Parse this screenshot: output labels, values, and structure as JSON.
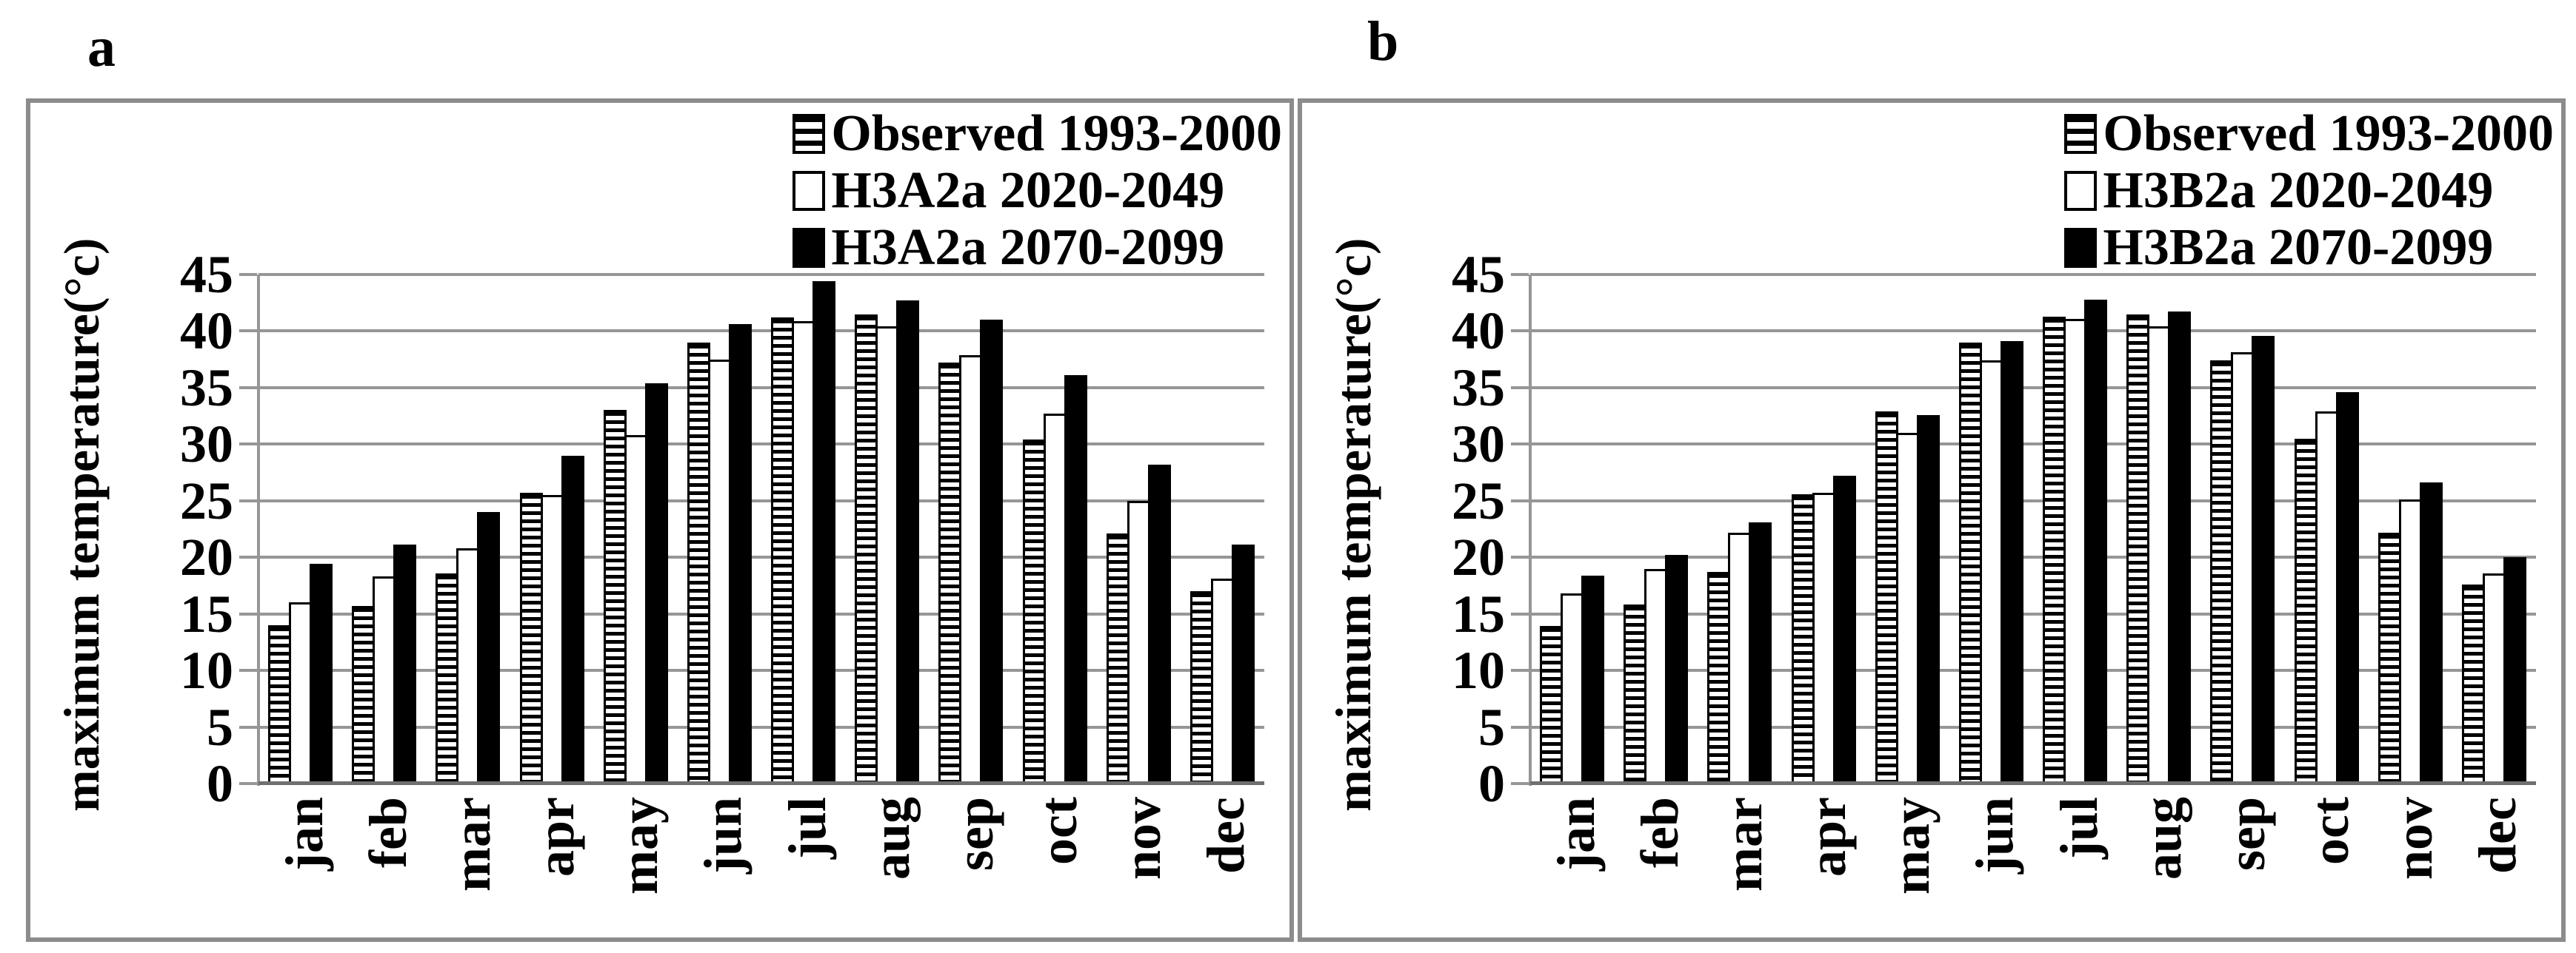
{
  "figure_labels": {
    "a": "a",
    "b": "b"
  },
  "colors": {
    "gridline": "#969696",
    "baseline": "#6f6f6f",
    "panel_border": "#8c8c8c",
    "text": "#000000",
    "bar_black": "#000000",
    "bar_white": "#ffffff"
  },
  "chart_data": [
    {
      "panel": "a",
      "type": "bar",
      "title": "",
      "ylabel": "maximum temperature(°c)",
      "xlabel": "",
      "ylim": [
        0,
        45
      ],
      "yticks": [
        45,
        40,
        35,
        30,
        25,
        20,
        15,
        10,
        5,
        0
      ],
      "grid": true,
      "legend_position": "top-right-inside",
      "categories": [
        "jan",
        "feb",
        "mar",
        "apr",
        "may",
        "jun",
        "jul",
        "aug",
        "sep",
        "oct",
        "nov",
        "dec"
      ],
      "series": [
        {
          "name": "Observed 1993-2000",
          "style": "hatched",
          "values": [
            14.0,
            15.7,
            18.6,
            25.7,
            33.0,
            39.0,
            41.2,
            41.5,
            37.2,
            30.4,
            22.1,
            17.0
          ]
        },
        {
          "name": "H3A2a 2020-2049",
          "style": "white",
          "values": [
            16.0,
            18.3,
            20.8,
            25.5,
            30.8,
            37.5,
            40.9,
            40.4,
            37.9,
            32.7,
            25.0,
            18.1
          ]
        },
        {
          "name": "H3A2a 2070-2099",
          "style": "black",
          "values": [
            19.4,
            21.1,
            24.0,
            29.0,
            35.4,
            40.6,
            44.4,
            42.7,
            41.0,
            36.1,
            28.2,
            21.1
          ]
        }
      ]
    },
    {
      "panel": "b",
      "type": "bar",
      "title": "",
      "ylabel": "maximum temperature(°c)",
      "xlabel": "",
      "ylim": [
        0,
        45
      ],
      "yticks": [
        45,
        40,
        35,
        30,
        25,
        20,
        15,
        10,
        5,
        0
      ],
      "grid": true,
      "legend_position": "top-right-inside",
      "categories": [
        "jan",
        "feb",
        "mar",
        "apr",
        "may",
        "jun",
        "jul",
        "aug",
        "sep",
        "oct",
        "nov",
        "dec"
      ],
      "series": [
        {
          "name": "Observed 1993-2000",
          "style": "hatched",
          "values": [
            13.9,
            15.8,
            18.7,
            25.6,
            32.9,
            39.0,
            41.3,
            41.5,
            37.4,
            30.5,
            22.2,
            17.6
          ]
        },
        {
          "name": "H3B2a 2020-2049",
          "style": "white",
          "values": [
            16.8,
            19.0,
            22.2,
            25.7,
            31.0,
            37.4,
            41.1,
            40.4,
            38.1,
            32.9,
            25.1,
            18.6
          ]
        },
        {
          "name": "H3B2a 2070-2099",
          "style": "black",
          "values": [
            18.4,
            20.2,
            23.1,
            27.2,
            32.6,
            39.1,
            42.8,
            41.7,
            39.6,
            34.6,
            26.6,
            20.0
          ]
        }
      ]
    }
  ]
}
